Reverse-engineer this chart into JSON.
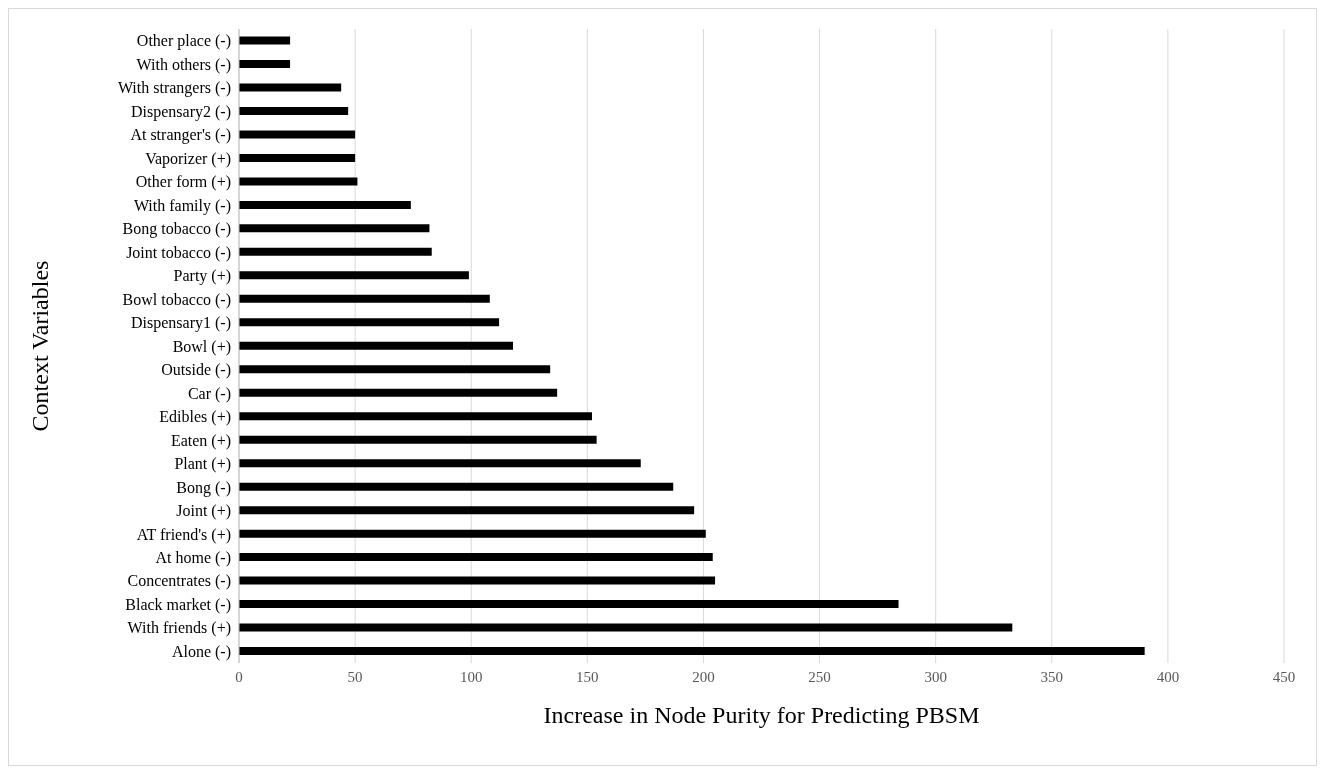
{
  "chart_data": {
    "type": "bar",
    "orientation": "horizontal",
    "xlabel": "Increase in Node Purity for Predicting PBSM",
    "ylabel": "Context Variables",
    "categories": [
      "Other place (-)",
      "With others (-)",
      "With strangers (-)",
      "Dispensary2 (-)",
      "At stranger's (-)",
      "Vaporizer (+)",
      "Other form (+)",
      "With family (-)",
      "Bong tobacco (-)",
      "Joint tobacco (-)",
      "Party (+)",
      "Bowl tobacco (-)",
      "Dispensary1 (-)",
      "Bowl (+)",
      "Outside (-)",
      "Car (-)",
      "Edibles (+)",
      "Eaten (+)",
      "Plant (+)",
      "Bong (-)",
      "Joint (+)",
      "AT friend's (+)",
      "At home (-)",
      "Concentrates (-)",
      "Black market (-)",
      "With friends (+)",
      "Alone (-)"
    ],
    "values": [
      22,
      22,
      44,
      47,
      50,
      50,
      51,
      74,
      82,
      83,
      99,
      108,
      112,
      118,
      134,
      137,
      152,
      154,
      173,
      187,
      196,
      201,
      204,
      205,
      284,
      333,
      390
    ],
    "color": "#000000",
    "xlim": [
      0,
      450
    ],
    "xticks": [
      0,
      50,
      100,
      150,
      200,
      250,
      300,
      350,
      400,
      450
    ],
    "grid": "x"
  }
}
